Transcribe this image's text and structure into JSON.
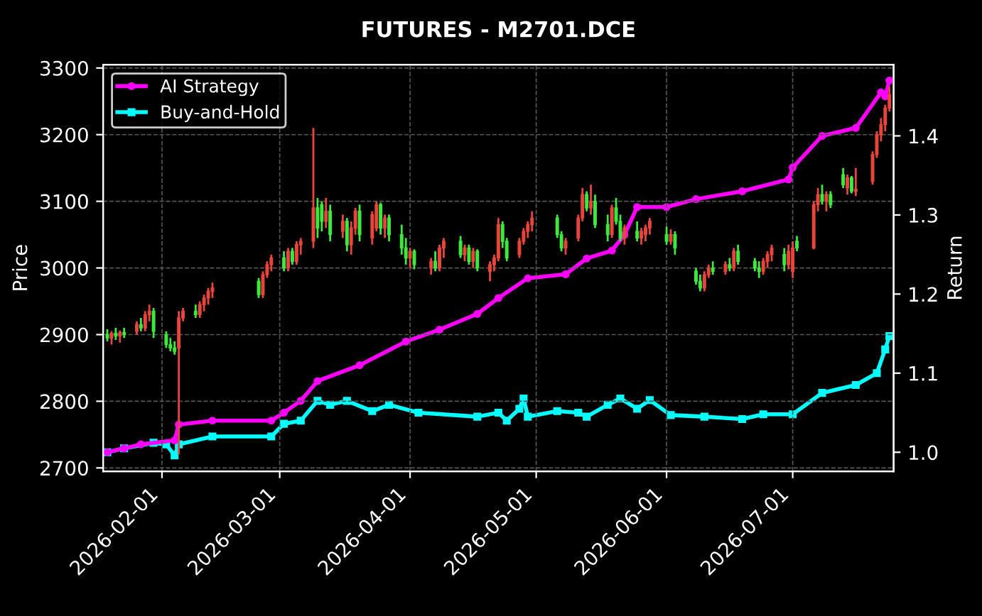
{
  "chart_data": {
    "type": "candlestick",
    "title": "FUTURES - M2701.DCE",
    "ylabel": "Price",
    "y2label": "Return",
    "x": [
      "2026-01-19",
      "2026-01-20",
      "2026-01-21",
      "2026-01-22",
      "2026-01-23",
      "2026-01-26",
      "2026-01-27",
      "2026-01-28",
      "2026-01-29",
      "2026-01-30",
      "2026-02-02",
      "2026-02-03",
      "2026-02-04",
      "2026-02-05",
      "2026-02-06",
      "2026-02-09",
      "2026-02-10",
      "2026-02-11",
      "2026-02-12",
      "2026-02-13",
      "2026-02-24",
      "2026-02-25",
      "2026-02-26",
      "2026-02-27",
      "2026-03-02",
      "2026-03-03",
      "2026-03-04",
      "2026-03-05",
      "2026-03-06",
      "2026-03-09",
      "2026-03-10",
      "2026-03-11",
      "2026-03-12",
      "2026-03-13",
      "2026-03-16",
      "2026-03-17",
      "2026-03-18",
      "2026-03-19",
      "2026-03-20",
      "2026-03-23",
      "2026-03-24",
      "2026-03-25",
      "2026-03-26",
      "2026-03-27",
      "2026-03-30",
      "2026-03-31",
      "2026-04-01",
      "2026-04-02",
      "2026-04-06",
      "2026-04-07",
      "2026-04-08",
      "2026-04-09",
      "2026-04-13",
      "2026-04-14",
      "2026-04-15",
      "2026-04-16",
      "2026-04-17",
      "2026-04-20",
      "2026-04-21",
      "2026-04-22",
      "2026-04-23",
      "2026-04-24",
      "2026-04-27",
      "2026-04-28",
      "2026-04-29",
      "2026-04-30",
      "2026-05-06",
      "2026-05-07",
      "2026-05-08",
      "2026-05-11",
      "2026-05-12",
      "2026-05-13",
      "2026-05-14",
      "2026-05-15",
      "2026-05-18",
      "2026-05-19",
      "2026-05-20",
      "2026-05-21",
      "2026-05-22",
      "2026-05-25",
      "2026-05-26",
      "2026-05-27",
      "2026-05-28",
      "2026-06-01",
      "2026-06-02",
      "2026-06-03",
      "2026-06-08",
      "2026-06-09",
      "2026-06-10",
      "2026-06-11",
      "2026-06-12",
      "2026-06-15",
      "2026-06-16",
      "2026-06-17",
      "2026-06-18",
      "2026-06-22",
      "2026-06-23",
      "2026-06-24",
      "2026-06-25",
      "2026-06-26",
      "2026-06-29",
      "2026-06-30",
      "2026-07-01",
      "2026-07-02",
      "2026-07-06",
      "2026-07-07",
      "2026-07-08",
      "2026-07-09",
      "2026-07-10",
      "2026-07-13",
      "2026-07-14",
      "2026-07-15",
      "2026-07-16",
      "2026-07-20",
      "2026-07-21",
      "2026-07-22",
      "2026-07-23",
      "2026-07-24"
    ],
    "ohlc": [
      [
        2900,
        2908,
        2890,
        2895
      ],
      [
        2895,
        2905,
        2885,
        2902
      ],
      [
        2902,
        2910,
        2892,
        2898
      ],
      [
        2898,
        2906,
        2888,
        2903
      ],
      [
        2903,
        2910,
        2895,
        2900
      ],
      [
        2905,
        2920,
        2900,
        2915
      ],
      [
        2915,
        2925,
        2905,
        2910
      ],
      [
        2910,
        2935,
        2905,
        2930
      ],
      [
        2930,
        2945,
        2920,
        2935
      ],
      [
        2935,
        2940,
        2895,
        2905
      ],
      [
        2900,
        2905,
        2880,
        2885
      ],
      [
        2885,
        2895,
        2875,
        2880
      ],
      [
        2880,
        2890,
        2870,
        2875
      ],
      [
        2880,
        2935,
        2720,
        2925
      ],
      [
        2925,
        2940,
        2920,
        2935
      ],
      [
        2935,
        2945,
        2925,
        2930
      ],
      [
        2930,
        2950,
        2925,
        2945
      ],
      [
        2945,
        2960,
        2935,
        2955
      ],
      [
        2955,
        2970,
        2945,
        2965
      ],
      [
        2965,
        2978,
        2955,
        2970
      ],
      [
        2980,
        2985,
        2955,
        2960
      ],
      [
        2960,
        2995,
        2955,
        2990
      ],
      [
        2990,
        3010,
        2985,
        3005
      ],
      [
        3005,
        3020,
        2995,
        3015
      ],
      [
        3015,
        3025,
        2995,
        3000
      ],
      [
        3000,
        3030,
        2995,
        3025
      ],
      [
        3025,
        3030,
        3005,
        3010
      ],
      [
        3010,
        3040,
        3005,
        3035
      ],
      [
        3035,
        3045,
        3020,
        3040
      ],
      [
        3040,
        3210,
        3030,
        3090
      ],
      [
        3090,
        3105,
        3045,
        3060
      ],
      [
        3095,
        3100,
        3055,
        3070
      ],
      [
        3070,
        3105,
        3060,
        3085
      ],
      [
        3085,
        3095,
        3040,
        3050
      ],
      [
        3055,
        3080,
        3045,
        3070
      ],
      [
        3070,
        3075,
        3025,
        3035
      ],
      [
        3035,
        3070,
        3020,
        3060
      ],
      [
        3060,
        3090,
        3050,
        3085
      ],
      [
        3085,
        3095,
        3040,
        3050
      ],
      [
        3045,
        3085,
        3035,
        3080
      ],
      [
        3060,
        3100,
        3055,
        3095
      ],
      [
        3095,
        3098,
        3050,
        3060
      ],
      [
        3060,
        3080,
        3045,
        3075
      ],
      [
        3075,
        3080,
        3040,
        3050
      ],
      [
        3050,
        3065,
        3020,
        3030
      ],
      [
        3030,
        3045,
        3005,
        3015
      ],
      [
        3015,
        3030,
        3000,
        3025
      ],
      [
        3025,
        3028,
        2998,
        3005
      ],
      [
        3000,
        3015,
        2990,
        3010
      ],
      [
        3010,
        3025,
        2995,
        3000
      ],
      [
        3000,
        3035,
        2995,
        3030
      ],
      [
        3030,
        3045,
        3015,
        3040
      ],
      [
        3040,
        3048,
        3015,
        3020
      ],
      [
        3020,
        3035,
        3010,
        3030
      ],
      [
        3030,
        3035,
        3005,
        3010
      ],
      [
        3010,
        3030,
        3000,
        3025
      ],
      [
        3025,
        3028,
        2995,
        3000
      ],
      [
        2995,
        3010,
        2980,
        3005
      ],
      [
        3005,
        3020,
        2995,
        3015
      ],
      [
        3015,
        3075,
        3010,
        3065
      ],
      [
        3065,
        3070,
        3030,
        3040
      ],
      [
        3040,
        3045,
        3010,
        3015
      ],
      [
        3020,
        3045,
        3015,
        3040
      ],
      [
        3040,
        3060,
        3035,
        3055
      ],
      [
        3055,
        3070,
        3045,
        3065
      ],
      [
        3065,
        3085,
        3055,
        3075
      ],
      [
        3075,
        3080,
        3045,
        3050
      ],
      [
        3050,
        3055,
        3025,
        3030
      ],
      [
        3030,
        3045,
        3020,
        3040
      ],
      [
        3045,
        3080,
        3040,
        3075
      ],
      [
        3075,
        3120,
        3070,
        3110
      ],
      [
        3110,
        3115,
        3085,
        3090
      ],
      [
        3090,
        3125,
        3080,
        3100
      ],
      [
        3100,
        3110,
        3060,
        3065
      ],
      [
        3065,
        3080,
        3040,
        3050
      ],
      [
        3050,
        3095,
        3045,
        3090
      ],
      [
        3090,
        3105,
        3065,
        3070
      ],
      [
        3070,
        3080,
        3040,
        3045
      ],
      [
        3045,
        3065,
        3035,
        3060
      ],
      [
        3055,
        3070,
        3040,
        3045
      ],
      [
        3045,
        3060,
        3035,
        3055
      ],
      [
        3050,
        3065,
        3040,
        3060
      ],
      [
        3060,
        3075,
        3050,
        3070
      ],
      [
        3050,
        3062,
        3035,
        3040
      ],
      [
        3040,
        3058,
        3035,
        3050
      ],
      [
        3050,
        3055,
        3020,
        3030
      ],
      [
        2995,
        3000,
        2975,
        2980
      ],
      [
        2980,
        2990,
        2965,
        2970
      ],
      [
        2970,
        2995,
        2965,
        2990
      ],
      [
        2990,
        3005,
        2985,
        3000
      ],
      [
        3000,
        3010,
        2990,
        2995
      ],
      [
        2995,
        3010,
        2990,
        3005
      ],
      [
        3005,
        3015,
        2995,
        3000
      ],
      [
        3000,
        3030,
        2995,
        3025
      ],
      [
        3025,
        3035,
        3005,
        3010
      ],
      [
        3010,
        3015,
        2995,
        3000
      ],
      [
        3000,
        3010,
        2985,
        2995
      ],
      [
        2995,
        3015,
        2990,
        3010
      ],
      [
        3010,
        3025,
        3000,
        3020
      ],
      [
        3020,
        3035,
        3010,
        3030
      ],
      [
        3020,
        3030,
        2995,
        3005
      ],
      [
        3005,
        3035,
        2998,
        3025
      ],
      [
        2995,
        3040,
        2985,
        3030
      ],
      [
        3040,
        3048,
        3025,
        3030
      ],
      [
        3030,
        3100,
        3028,
        3095
      ],
      [
        3095,
        3120,
        3085,
        3110
      ],
      [
        3110,
        3125,
        3095,
        3100
      ],
      [
        3100,
        3115,
        3085,
        3110
      ],
      [
        3110,
        3115,
        3090,
        3095
      ],
      [
        3140,
        3150,
        3120,
        3125
      ],
      [
        3120,
        3140,
        3110,
        3135
      ],
      [
        3135,
        3138,
        3112,
        3115
      ],
      [
        3115,
        3150,
        3108,
        3118
      ],
      [
        3130,
        3175,
        3125,
        3170
      ],
      [
        3170,
        3205,
        3165,
        3200
      ],
      [
        3200,
        3225,
        3190,
        3215
      ],
      [
        3215,
        3245,
        3205,
        3240
      ],
      [
        3240,
        3272,
        3235,
        3260
      ]
    ],
    "colors": [
      "#3ee83e",
      "#e8453c",
      "#3ee83e",
      "#e8453c",
      "#3ee83e",
      "#e8453c",
      "#3ee83e",
      "#e8453c",
      "#e8453c",
      "#3ee83e",
      "#3ee83e",
      "#3ee83e",
      "#3ee83e",
      "#e8453c",
      "#e8453c",
      "#3ee83e",
      "#e8453c",
      "#e8453c",
      "#e8453c",
      "#e8453c",
      "#3ee83e",
      "#e8453c",
      "#e8453c",
      "#e8453c",
      "#3ee83e",
      "#e8453c",
      "#3ee83e",
      "#e8453c",
      "#e8453c",
      "#e8453c",
      "#3ee83e",
      "#3ee83e",
      "#e8453c",
      "#3ee83e",
      "#e8453c",
      "#3ee83e",
      "#e8453c",
      "#e8453c",
      "#3ee83e",
      "#e8453c",
      "#e8453c",
      "#3ee83e",
      "#e8453c",
      "#3ee83e",
      "#3ee83e",
      "#3ee83e",
      "#e8453c",
      "#3ee83e",
      "#e8453c",
      "#3ee83e",
      "#e8453c",
      "#e8453c",
      "#3ee83e",
      "#e8453c",
      "#3ee83e",
      "#e8453c",
      "#3ee83e",
      "#e8453c",
      "#e8453c",
      "#e8453c",
      "#3ee83e",
      "#3ee83e",
      "#e8453c",
      "#e8453c",
      "#e8453c",
      "#e8453c",
      "#3ee83e",
      "#3ee83e",
      "#e8453c",
      "#e8453c",
      "#e8453c",
      "#3ee83e",
      "#e8453c",
      "#3ee83e",
      "#3ee83e",
      "#e8453c",
      "#3ee83e",
      "#3ee83e",
      "#e8453c",
      "#3ee83e",
      "#e8453c",
      "#e8453c",
      "#e8453c",
      "#3ee83e",
      "#e8453c",
      "#3ee83e",
      "#3ee83e",
      "#3ee83e",
      "#e8453c",
      "#e8453c",
      "#3ee83e",
      "#e8453c",
      "#3ee83e",
      "#e8453c",
      "#3ee83e",
      "#3ee83e",
      "#3ee83e",
      "#e8453c",
      "#e8453c",
      "#e8453c",
      "#3ee83e",
      "#e8453c",
      "#e8453c",
      "#3ee83e",
      "#e8453c",
      "#e8453c",
      "#3ee83e",
      "#e8453c",
      "#3ee83e",
      "#3ee83e",
      "#e8453c",
      "#3ee83e",
      "#e8453c",
      "#e8453c",
      "#e8453c",
      "#e8453c",
      "#e8453c",
      "#e8453c"
    ],
    "series": [
      {
        "name": "AI Strategy",
        "type": "line",
        "axis": "y2",
        "color": "#ff00ff",
        "marker": "circle",
        "x": [
          "2026-01-19",
          "2026-01-23",
          "2026-01-27",
          "2026-02-04",
          "2026-02-05",
          "2026-02-13",
          "2026-02-27",
          "2026-03-02",
          "2026-03-06",
          "2026-03-10",
          "2026-03-20",
          "2026-03-31",
          "2026-04-08",
          "2026-04-17",
          "2026-04-22",
          "2026-04-29",
          "2026-05-08",
          "2026-05-13",
          "2026-05-19",
          "2026-05-22",
          "2026-05-25",
          "2026-06-01",
          "2026-06-08",
          "2026-06-19",
          "2026-06-30",
          "2026-07-01",
          "2026-07-08",
          "2026-07-16",
          "2026-07-22",
          "2026-07-23",
          "2026-07-24"
        ],
        "values": [
          1.0,
          1.005,
          1.01,
          1.015,
          1.035,
          1.04,
          1.04,
          1.05,
          1.065,
          1.09,
          1.11,
          1.14,
          1.155,
          1.175,
          1.195,
          1.22,
          1.225,
          1.245,
          1.255,
          1.275,
          1.31,
          1.31,
          1.32,
          1.33,
          1.345,
          1.36,
          1.4,
          1.41,
          1.455,
          1.45,
          1.47
        ]
      },
      {
        "name": "Buy-and-Hold",
        "type": "line",
        "axis": "y2",
        "color": "#00ffff",
        "marker": "square",
        "x": [
          "2026-01-19",
          "2026-01-23",
          "2026-01-30",
          "2026-02-02",
          "2026-02-04",
          "2026-02-05",
          "2026-02-13",
          "2026-02-27",
          "2026-03-02",
          "2026-03-06",
          "2026-03-10",
          "2026-03-13",
          "2026-03-17",
          "2026-03-23",
          "2026-03-27",
          "2026-04-03",
          "2026-04-17",
          "2026-04-22",
          "2026-04-24",
          "2026-04-27",
          "2026-04-28",
          "2026-04-29",
          "2026-05-06",
          "2026-05-11",
          "2026-05-13",
          "2026-05-18",
          "2026-05-21",
          "2026-05-25",
          "2026-05-28",
          "2026-06-02",
          "2026-06-10",
          "2026-06-19",
          "2026-06-24",
          "2026-07-01",
          "2026-07-08",
          "2026-07-16",
          "2026-07-21",
          "2026-07-23",
          "2026-07-24"
        ],
        "values": [
          1.0,
          1.005,
          1.012,
          1.01,
          0.996,
          1.01,
          1.02,
          1.02,
          1.036,
          1.04,
          1.065,
          1.06,
          1.065,
          1.052,
          1.06,
          1.05,
          1.045,
          1.05,
          1.04,
          1.055,
          1.068,
          1.045,
          1.052,
          1.05,
          1.045,
          1.06,
          1.068,
          1.055,
          1.066,
          1.047,
          1.045,
          1.042,
          1.048,
          1.048,
          1.075,
          1.085,
          1.1,
          1.13,
          1.147
        ]
      }
    ],
    "xlim": [
      "2026-01-18",
      "2026-07-25"
    ],
    "xticks": [
      {
        "value": "2026-02-01",
        "label": "2026-02-01"
      },
      {
        "value": "2026-03-01",
        "label": "2026-03-01"
      },
      {
        "value": "2026-04-01",
        "label": "2026-04-01"
      },
      {
        "value": "2026-05-01",
        "label": "2026-05-01"
      },
      {
        "value": "2026-06-01",
        "label": "2026-06-01"
      },
      {
        "value": "2026-07-01",
        "label": "2026-07-01"
      }
    ],
    "ylim": [
      2695,
      3305
    ],
    "yticks": [
      2700,
      2800,
      2900,
      3000,
      3100,
      3200,
      3300
    ],
    "y2lim": [
      0.976,
      1.49
    ],
    "y2ticks": [
      {
        "value": 1.0,
        "label": "1.0"
      },
      1.1,
      1.2,
      1.3,
      1.4
    ],
    "grid": true,
    "legend": "top left",
    "line_style": "solid"
  }
}
